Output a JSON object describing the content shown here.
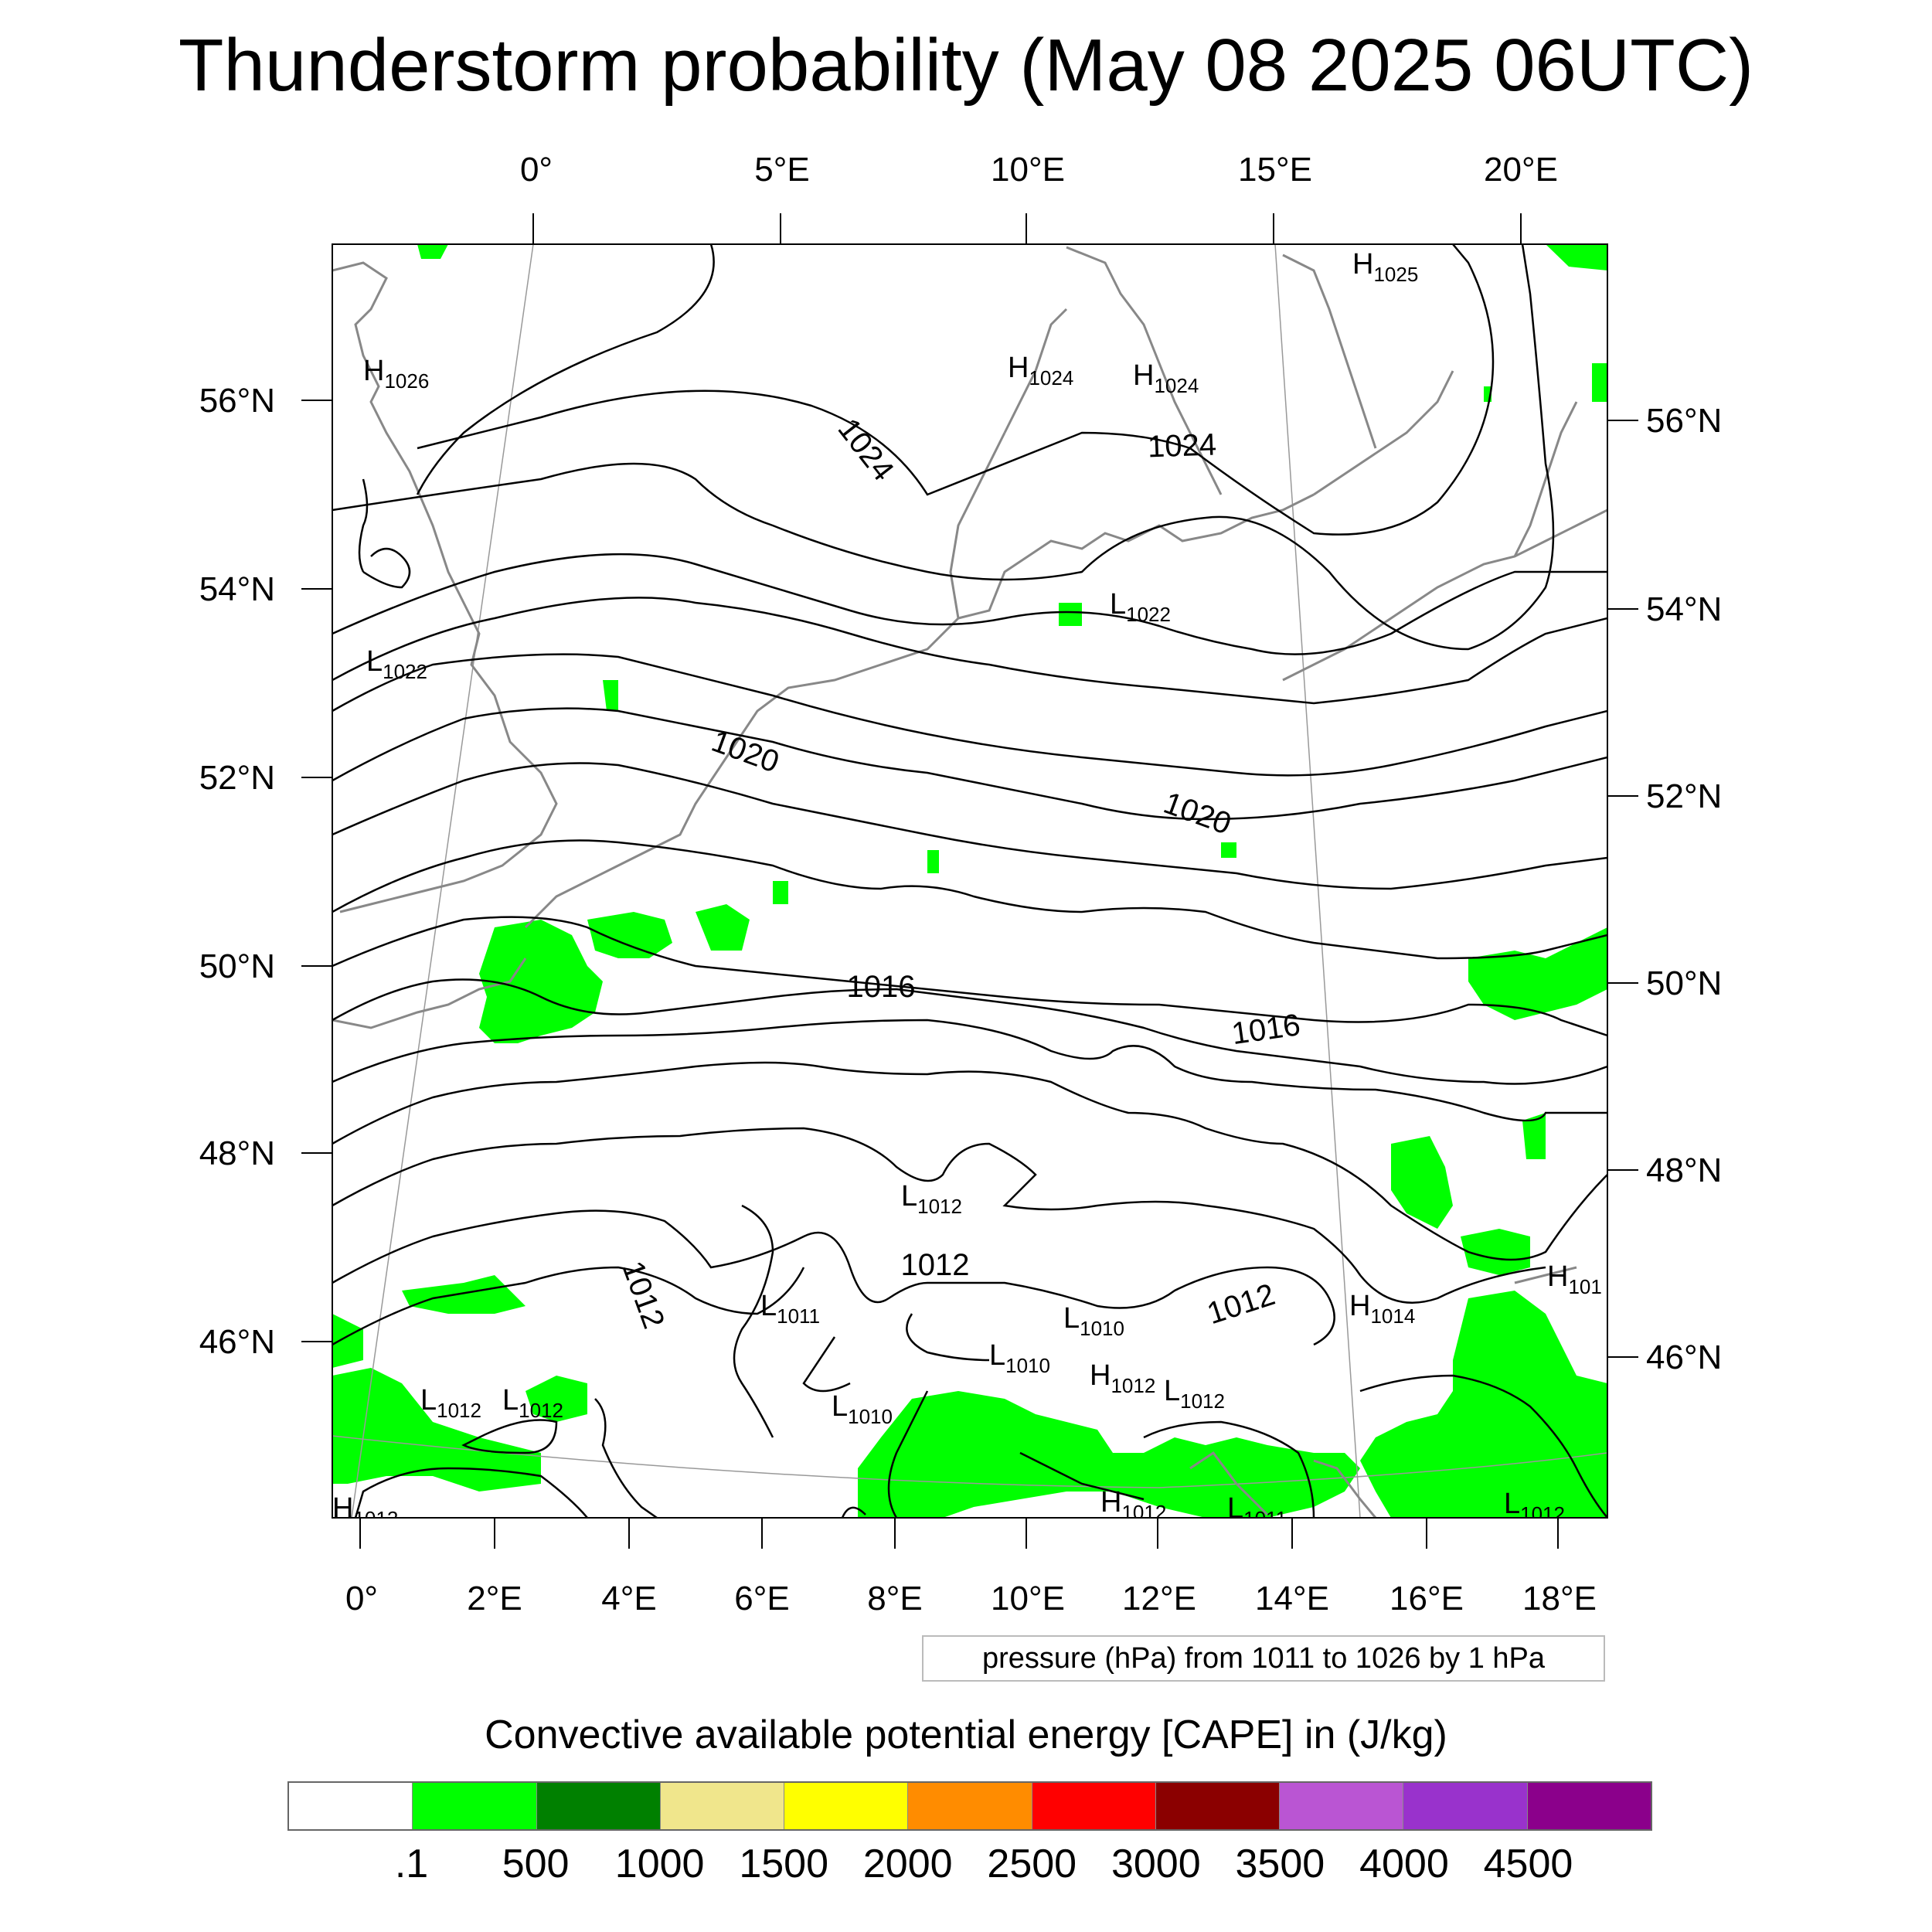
{
  "title": "Thunderstorm probability (May 08 2025 06UTC)",
  "top_lon_labels": [
    "0°",
    "5°E",
    "10°E",
    "15°E",
    "20°E"
  ],
  "bottom_lon_labels": [
    "0°",
    "2°E",
    "4°E",
    "6°E",
    "8°E",
    "10°E",
    "12°E",
    "14°E",
    "16°E",
    "18°E"
  ],
  "left_lat_labels": [
    "56°N",
    "54°N",
    "52°N",
    "50°N",
    "48°N",
    "46°N"
  ],
  "right_lat_labels": [
    "56°N",
    "54°N",
    "52°N",
    "50°N",
    "48°N",
    "46°N"
  ],
  "contour_labels": [
    "1024",
    "1024",
    "1020",
    "1020",
    "1016",
    "1016",
    "1012",
    "1012",
    "1012"
  ],
  "pressure_centers": [
    {
      "type": "H",
      "value": "1026"
    },
    {
      "type": "H",
      "value": "1025"
    },
    {
      "type": "H",
      "value": "1024"
    },
    {
      "type": "H",
      "value": "1024"
    },
    {
      "type": "L",
      "value": "1022"
    },
    {
      "type": "L",
      "value": "1022"
    },
    {
      "type": "L",
      "value": "1012"
    },
    {
      "type": "L",
      "value": "1011"
    },
    {
      "type": "L",
      "value": "1010"
    },
    {
      "type": "L",
      "value": "1010"
    },
    {
      "type": "L",
      "value": "1010"
    },
    {
      "type": "H",
      "value": "1014"
    },
    {
      "type": "H",
      "value": "101"
    },
    {
      "type": "H",
      "value": "1012"
    },
    {
      "type": "L",
      "value": "1012"
    },
    {
      "type": "L",
      "value": "1012"
    },
    {
      "type": "L",
      "value": "1012"
    },
    {
      "type": "H",
      "value": "1012"
    },
    {
      "type": "L",
      "value": "1011"
    },
    {
      "type": "L",
      "value": "1012"
    },
    {
      "type": "H",
      "value": "1012"
    }
  ],
  "contour_info": "pressure (hPa) from 1011 to 1026 by 1 hPa",
  "colorbar": {
    "title": "Convective available potential energy [CAPE] in (J/kg)",
    "colors": [
      "#ffffff",
      "#00ff00",
      "#008000",
      "#f0e68c",
      "#ffff00",
      "#ff8c00",
      "#ff0000",
      "#8b0000",
      "#ba55d3",
      "#9932cc",
      "#8b008b"
    ],
    "labels": [
      ".1",
      "500",
      "1000",
      "1500",
      "2000",
      "2500",
      "3000",
      "3500",
      "4000",
      "4500"
    ]
  },
  "colors": {
    "cape_green": "#00ff00",
    "coast": "#888888",
    "isobar": "#000000"
  }
}
